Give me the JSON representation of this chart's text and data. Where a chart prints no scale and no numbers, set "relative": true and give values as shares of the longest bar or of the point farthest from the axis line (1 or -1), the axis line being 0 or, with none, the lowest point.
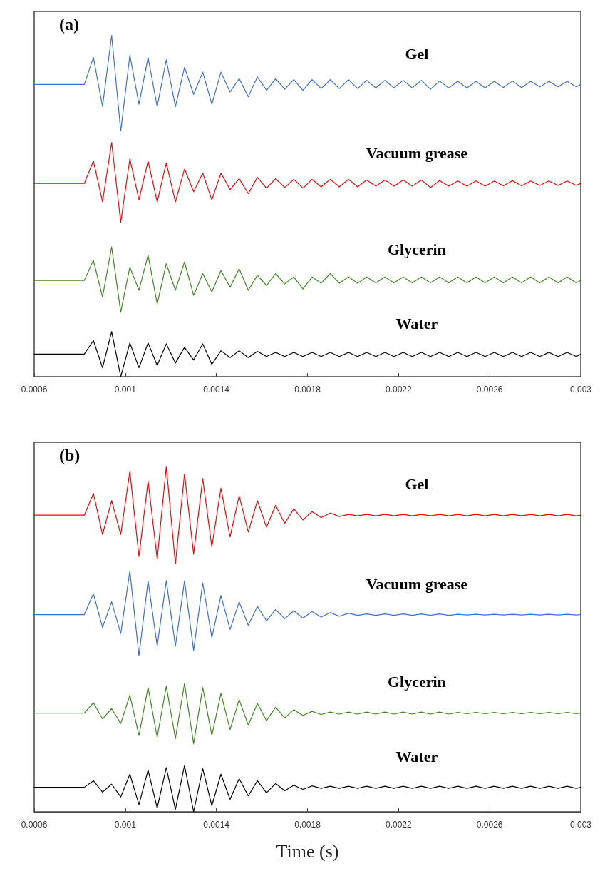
{
  "chart_data": [
    {
      "type": "line",
      "relative": true,
      "marker": "none",
      "annotations": [
        "(a)"
      ],
      "xlim": [
        0.0006,
        0.003
      ],
      "xticks": [
        0.0006,
        0.001,
        0.0014,
        0.0018,
        0.0022,
        0.0026,
        0.003
      ],
      "x": [
        0.0006,
        0.00082,
        0.00086,
        0.0009,
        0.00094,
        0.00098,
        0.00102,
        0.00106,
        0.0011,
        0.00114,
        0.00118,
        0.00122,
        0.00126,
        0.0013,
        0.00134,
        0.00138,
        0.00142,
        0.00146,
        0.0015,
        0.00154,
        0.00158,
        0.00162,
        0.00166,
        0.0017,
        0.00174,
        0.00178,
        0.00182,
        0.00186,
        0.0019,
        0.00194,
        0.00198,
        0.00202,
        0.00206,
        0.0021,
        0.00214,
        0.00218,
        0.00222,
        0.00226,
        0.0023,
        0.00234,
        0.00238,
        0.00242,
        0.00246,
        0.0025,
        0.00254,
        0.00258,
        0.00262,
        0.00266,
        0.0027,
        0.00274,
        0.00278,
        0.00282,
        0.00286,
        0.0029,
        0.00294,
        0.00298,
        0.003
      ],
      "series": [
        {
          "name": "Gel",
          "color": "#3a6fd8",
          "values": [
            0.856,
            0.856,
            0.935,
            0.791,
            1.0,
            0.719,
            0.942,
            0.798,
            0.935,
            0.791,
            0.928,
            0.791,
            0.906,
            0.827,
            0.892,
            0.798,
            0.892,
            0.834,
            0.873,
            0.82,
            0.878,
            0.839,
            0.873,
            0.842,
            0.87,
            0.839,
            0.87,
            0.844,
            0.87,
            0.844,
            0.87,
            0.844,
            0.868,
            0.846,
            0.868,
            0.846,
            0.868,
            0.846,
            0.868,
            0.842,
            0.866,
            0.846,
            0.865,
            0.846,
            0.865,
            0.846,
            0.865,
            0.847,
            0.866,
            0.847,
            0.865,
            0.849,
            0.865,
            0.849,
            0.865,
            0.849,
            0.856
          ]
        },
        {
          "name": "Vacuum grease",
          "color": "#ff0000",
          "values": [
            0.566,
            0.566,
            0.632,
            0.512,
            0.686,
            0.452,
            0.638,
            0.518,
            0.632,
            0.512,
            0.626,
            0.512,
            0.608,
            0.542,
            0.596,
            0.518,
            0.596,
            0.548,
            0.58,
            0.536,
            0.584,
            0.552,
            0.58,
            0.554,
            0.578,
            0.552,
            0.578,
            0.556,
            0.578,
            0.556,
            0.578,
            0.556,
            0.576,
            0.558,
            0.576,
            0.558,
            0.576,
            0.558,
            0.576,
            0.554,
            0.574,
            0.558,
            0.573,
            0.558,
            0.573,
            0.558,
            0.573,
            0.559,
            0.574,
            0.559,
            0.573,
            0.56,
            0.573,
            0.56,
            0.573,
            0.56,
            0.566
          ]
        },
        {
          "name": "Glycerin",
          "color": "#3f8a1e",
          "values": [
            0.282,
            0.282,
            0.341,
            0.233,
            0.38,
            0.189,
            0.321,
            0.253,
            0.356,
            0.213,
            0.331,
            0.253,
            0.336,
            0.238,
            0.302,
            0.248,
            0.311,
            0.262,
            0.316,
            0.253,
            0.297,
            0.267,
            0.302,
            0.272,
            0.292,
            0.257,
            0.292,
            0.274,
            0.302,
            0.274,
            0.292,
            0.274,
            0.292,
            0.275,
            0.292,
            0.275,
            0.292,
            0.275,
            0.292,
            0.275,
            0.292,
            0.275,
            0.292,
            0.275,
            0.292,
            0.275,
            0.292,
            0.275,
            0.292,
            0.275,
            0.292,
            0.275,
            0.292,
            0.275,
            0.292,
            0.275,
            0.282
          ]
        },
        {
          "name": "Water",
          "color": "#000000",
          "values": [
            0.066,
            0.066,
            0.106,
            0.026,
            0.132,
            0.0,
            0.099,
            0.026,
            0.099,
            0.033,
            0.096,
            0.04,
            0.086,
            0.049,
            0.096,
            0.036,
            0.076,
            0.056,
            0.076,
            0.056,
            0.074,
            0.059,
            0.071,
            0.059,
            0.071,
            0.059,
            0.071,
            0.059,
            0.071,
            0.059,
            0.071,
            0.059,
            0.071,
            0.059,
            0.071,
            0.059,
            0.071,
            0.059,
            0.071,
            0.059,
            0.071,
            0.059,
            0.071,
            0.059,
            0.071,
            0.059,
            0.071,
            0.059,
            0.071,
            0.059,
            0.071,
            0.059,
            0.071,
            0.059,
            0.071,
            0.059,
            0.066
          ]
        }
      ]
    },
    {
      "type": "line",
      "relative": true,
      "marker": "none",
      "annotations": [
        "(b)"
      ],
      "xlabel": "Time (s)",
      "xlim": [
        0.0006,
        0.003
      ],
      "xticks": [
        0.0006,
        0.001,
        0.0014,
        0.0018,
        0.0022,
        0.0026,
        0.003
      ],
      "x": [
        0.0006,
        0.00082,
        0.00086,
        0.0009,
        0.00094,
        0.00098,
        0.00102,
        0.00106,
        0.0011,
        0.00114,
        0.00118,
        0.00122,
        0.00126,
        0.0013,
        0.00134,
        0.00138,
        0.00142,
        0.00146,
        0.0015,
        0.00154,
        0.00158,
        0.00162,
        0.00166,
        0.0017,
        0.00174,
        0.00178,
        0.00182,
        0.00186,
        0.0019,
        0.00194,
        0.00198,
        0.00202,
        0.00206,
        0.0021,
        0.00214,
        0.00218,
        0.00222,
        0.00226,
        0.0023,
        0.00234,
        0.00238,
        0.00242,
        0.00246,
        0.0025,
        0.00254,
        0.00258,
        0.00262,
        0.00266,
        0.0027,
        0.00274,
        0.00278,
        0.00282,
        0.00286,
        0.0029,
        0.00294,
        0.00298,
        0.003
      ],
      "series": [
        {
          "name": "Gel",
          "color": "#ff0000",
          "values": [
            0.859,
            0.859,
            0.922,
            0.803,
            0.901,
            0.803,
            0.986,
            0.739,
            0.958,
            0.732,
            1.0,
            0.718,
            0.979,
            0.746,
            0.965,
            0.767,
            0.937,
            0.796,
            0.915,
            0.81,
            0.901,
            0.824,
            0.887,
            0.835,
            0.877,
            0.845,
            0.869,
            0.852,
            0.865,
            0.855,
            0.861,
            0.857,
            0.861,
            0.857,
            0.861,
            0.857,
            0.861,
            0.857,
            0.861,
            0.857,
            0.861,
            0.857,
            0.861,
            0.857,
            0.861,
            0.857,
            0.861,
            0.857,
            0.861,
            0.857,
            0.861,
            0.857,
            0.861,
            0.857,
            0.861,
            0.857,
            0.859
          ]
        },
        {
          "name": "Vacuum grease",
          "color": "#3a6fd8",
          "values": [
            0.571,
            0.571,
            0.632,
            0.534,
            0.608,
            0.516,
            0.697,
            0.452,
            0.669,
            0.48,
            0.669,
            0.48,
            0.669,
            0.467,
            0.663,
            0.504,
            0.626,
            0.528,
            0.608,
            0.54,
            0.595,
            0.553,
            0.586,
            0.559,
            0.582,
            0.561,
            0.58,
            0.564,
            0.577,
            0.566,
            0.575,
            0.569,
            0.573,
            0.569,
            0.573,
            0.569,
            0.573,
            0.569,
            0.573,
            0.569,
            0.573,
            0.569,
            0.572,
            0.57,
            0.572,
            0.57,
            0.572,
            0.57,
            0.572,
            0.57,
            0.572,
            0.57,
            0.572,
            0.57,
            0.572,
            0.57,
            0.571
          ]
        },
        {
          "name": "Glycerin",
          "color": "#3f8a1e",
          "values": [
            0.286,
            0.286,
            0.316,
            0.269,
            0.299,
            0.256,
            0.338,
            0.221,
            0.36,
            0.216,
            0.364,
            0.212,
            0.372,
            0.197,
            0.36,
            0.221,
            0.343,
            0.238,
            0.325,
            0.251,
            0.314,
            0.264,
            0.303,
            0.272,
            0.296,
            0.279,
            0.291,
            0.282,
            0.289,
            0.283,
            0.289,
            0.283,
            0.289,
            0.283,
            0.289,
            0.283,
            0.289,
            0.283,
            0.289,
            0.283,
            0.289,
            0.283,
            0.288,
            0.284,
            0.288,
            0.284,
            0.288,
            0.284,
            0.288,
            0.284,
            0.288,
            0.284,
            0.288,
            0.284,
            0.288,
            0.284,
            0.286
          ]
        },
        {
          "name": "Water",
          "color": "#000000",
          "values": [
            0.071,
            0.071,
            0.09,
            0.057,
            0.08,
            0.043,
            0.109,
            0.021,
            0.121,
            0.011,
            0.128,
            0.007,
            0.134,
            0.0,
            0.125,
            0.018,
            0.109,
            0.036,
            0.096,
            0.046,
            0.09,
            0.055,
            0.082,
            0.061,
            0.077,
            0.065,
            0.075,
            0.068,
            0.074,
            0.068,
            0.074,
            0.068,
            0.074,
            0.068,
            0.074,
            0.068,
            0.074,
            0.068,
            0.074,
            0.068,
            0.074,
            0.068,
            0.074,
            0.068,
            0.074,
            0.068,
            0.074,
            0.068,
            0.074,
            0.068,
            0.074,
            0.068,
            0.074,
            0.068,
            0.074,
            0.068,
            0.071
          ]
        }
      ]
    }
  ]
}
